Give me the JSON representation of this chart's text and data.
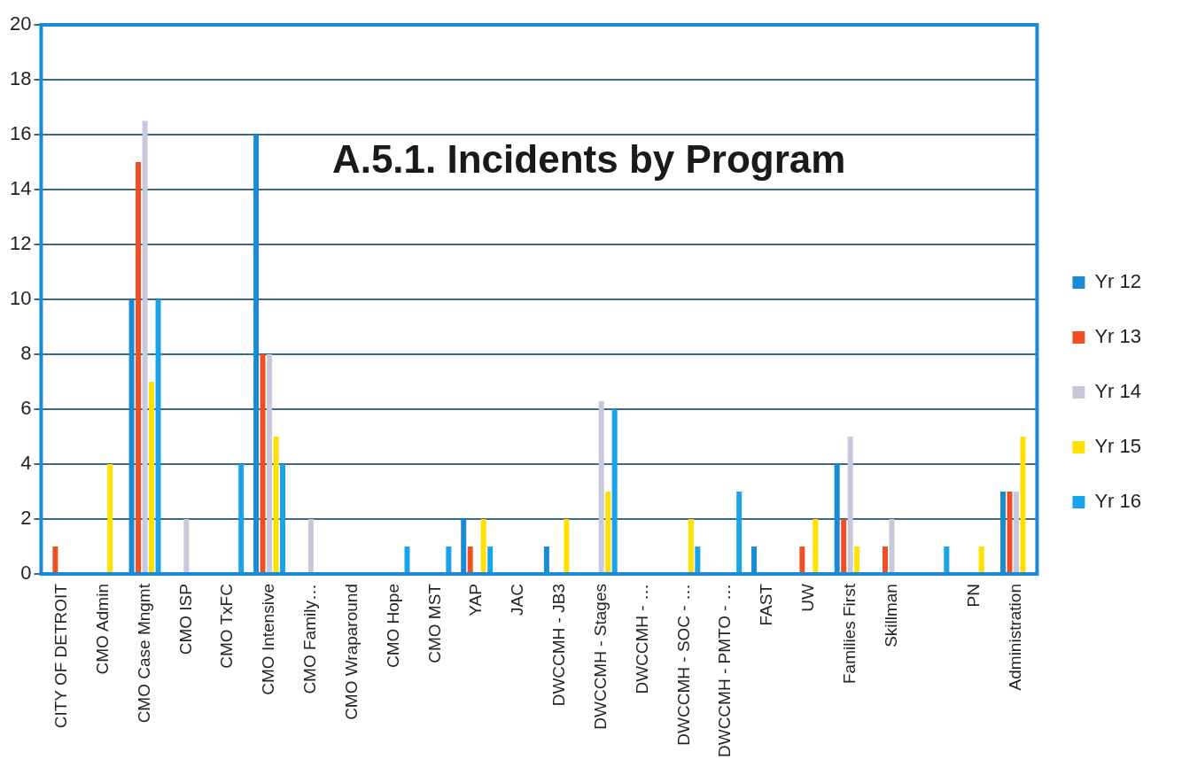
{
  "chart_data": {
    "type": "bar",
    "title": "A.5.1. Incidents by Program",
    "categories": [
      "CITY OF DETROIT",
      "CMO Admin",
      "CMO Case Mngmt",
      "CMO ISP",
      "CMO TxFC",
      "CMO Intensive",
      "CMO Family…",
      "CMO Wraparound",
      "CMO Hope",
      "CMO MST",
      "YAP",
      "JAC",
      "DWCCMH - JB3",
      "DWCCMH - Stages",
      "DWCCMH - …",
      "DWCCMH - SOC - …",
      "DWCCMH - PMTO - …",
      "FAST",
      "UW",
      "Families First",
      "Skillman",
      null,
      "PN",
      "Administration"
    ],
    "series": [
      {
        "name": "Yr 12",
        "color": "#1a8ad4",
        "values": [
          0,
          0,
          10,
          0,
          0,
          16,
          0,
          0,
          0,
          0,
          2,
          0,
          1,
          0,
          0,
          0,
          0,
          1,
          0,
          4,
          0,
          0,
          0,
          3
        ]
      },
      {
        "name": "Yr 13",
        "color": "#f04e23",
        "values": [
          1,
          0,
          15,
          0,
          0,
          8,
          0,
          0,
          0,
          0,
          1,
          0,
          0,
          0,
          0,
          0,
          0,
          0,
          1,
          2,
          1,
          0,
          0,
          3
        ]
      },
      {
        "name": "Yr 14",
        "color": "#c8c8dc",
        "values": [
          0,
          0,
          16.5,
          2,
          0,
          8,
          2,
          0,
          0,
          0,
          0,
          0,
          0,
          6.3,
          0,
          0,
          0,
          0,
          0,
          5,
          2,
          0,
          0,
          3
        ]
      },
      {
        "name": "Yr 15",
        "color": "#ffe000",
        "values": [
          0,
          4,
          7,
          0,
          0,
          5,
          0,
          0,
          0,
          0,
          2,
          0,
          2,
          3,
          0,
          2,
          0,
          0,
          2,
          1,
          0,
          0,
          1,
          5
        ]
      },
      {
        "name": "Yr 16",
        "color": "#1aa3e8",
        "values": [
          0,
          0,
          10,
          0,
          4,
          4,
          0,
          0,
          1,
          1,
          1,
          0,
          0,
          6,
          0,
          1,
          3,
          0,
          0,
          0,
          0,
          1,
          0,
          0
        ]
      }
    ],
    "ylim": [
      0,
      20
    ],
    "yticks": [
      0,
      2,
      4,
      6,
      8,
      10,
      12,
      14,
      16,
      18,
      20
    ],
    "grid": "y",
    "legend": "right"
  }
}
